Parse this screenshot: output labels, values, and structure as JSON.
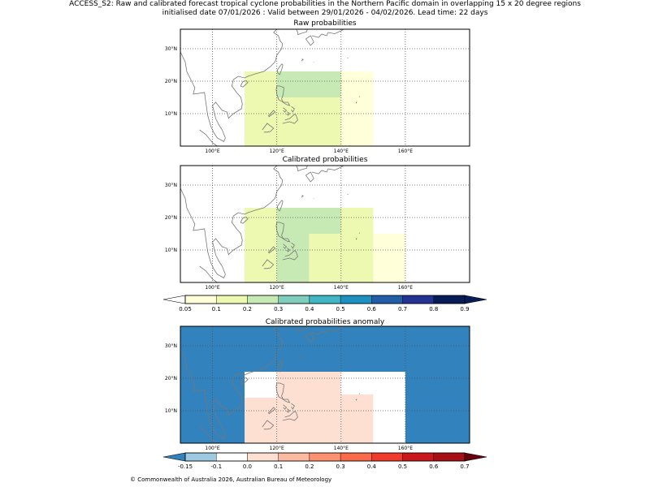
{
  "title_line1": "ACCESS_S2: Raw and calibrated forecast tropical cyclone probabilities in the Northern Pacific domain in overlapping 15 x 20 degree regions",
  "title_line2": "initialised date 07/01/2026 :  Valid between 29/01/2026 - 04/02/2026. Lead time: 22 days",
  "footer": "© Commonwealth of Australia 2026, Australian Bureau of Meteorology",
  "chart_data": [
    {
      "type": "heatmap",
      "title": "Raw probabilities",
      "x_ticks": [
        "100°E",
        "120°E",
        "140°E",
        "160°E"
      ],
      "y_ticks": [
        "10°N",
        "20°N",
        "30°N"
      ],
      "xlim": [
        90,
        180
      ],
      "ylim": [
        0,
        36
      ],
      "cells": [
        {
          "lon": [
            110,
            150
          ],
          "lat": [
            0,
            23
          ],
          "value": 0.07
        },
        {
          "lon": [
            110,
            140
          ],
          "lat": [
            0,
            23
          ],
          "value": 0.15
        },
        {
          "lon": [
            120,
            140
          ],
          "lat": [
            15,
            23
          ],
          "value": 0.25
        }
      ]
    },
    {
      "type": "heatmap",
      "title": "Calibrated probabilities",
      "x_ticks": [
        "100°E",
        "120°E",
        "140°E",
        "160°E"
      ],
      "y_ticks": [
        "10°N",
        "20°N",
        "30°N"
      ],
      "xlim": [
        90,
        180
      ],
      "ylim": [
        0,
        36
      ],
      "cells": [
        {
          "lon": [
            110,
            150
          ],
          "lat": [
            0,
            23
          ],
          "value": 0.07
        },
        {
          "lon": [
            150,
            160
          ],
          "lat": [
            0,
            15
          ],
          "value": 0.07
        },
        {
          "lon": [
            110,
            150
          ],
          "lat": [
            0,
            23
          ],
          "value": 0.15
        },
        {
          "lon": [
            120,
            140
          ],
          "lat": [
            15,
            23
          ],
          "value": 0.25
        },
        {
          "lon": [
            120,
            130
          ],
          "lat": [
            0,
            15
          ],
          "value": 0.25
        }
      ]
    },
    {
      "type": "heatmap",
      "title": "Calibrated probabilities anomaly",
      "x_ticks": [
        "100°E",
        "120°E",
        "140°E",
        "160°E"
      ],
      "y_ticks": [
        "10°N",
        "20°N",
        "30°N"
      ],
      "xlim": [
        90,
        180
      ],
      "ylim": [
        0,
        36
      ],
      "background_value": -0.2,
      "cells": [
        {
          "lon": [
            110,
            160
          ],
          "lat": [
            0,
            22
          ],
          "value": -0.1
        },
        {
          "lon": [
            120,
            140
          ],
          "lat": [
            0,
            22
          ],
          "value": 0.0
        },
        {
          "lon": [
            140,
            150
          ],
          "lat": [
            15,
            22
          ],
          "value": -0.1
        },
        {
          "lon": [
            140,
            150
          ],
          "lat": [
            0,
            15
          ],
          "value": 0.0
        },
        {
          "lon": [
            150,
            160
          ],
          "lat": [
            0,
            15
          ],
          "value": -0.1
        },
        {
          "lon": [
            110,
            120
          ],
          "lat": [
            14,
            22
          ],
          "value": -0.1
        },
        {
          "lon": [
            110,
            120
          ],
          "lat": [
            0,
            14
          ],
          "value": 0.0
        },
        {
          "lon": [
            120,
            130
          ],
          "lat": [
            0,
            14
          ],
          "value": 0.05
        }
      ]
    }
  ],
  "colorbar_prob": {
    "labels": [
      "0.05",
      "0.1",
      "0.2",
      "0.3",
      "0.4",
      "0.5",
      "0.6",
      "0.7",
      "0.8",
      "0.9"
    ],
    "bounds": [
      0.05,
      0.1,
      0.2,
      0.3,
      0.4,
      0.5,
      0.6,
      0.7,
      0.8,
      0.9
    ],
    "colors": [
      "#ffffd9",
      "#edf8b1",
      "#c7e9b4",
      "#7fcdbb",
      "#41b6c4",
      "#1d91c0",
      "#225ea8",
      "#253494",
      "#081d58"
    ],
    "under": "#ffffff",
    "over": "#081d58"
  },
  "colorbar_anom": {
    "labels": [
      "-0.15",
      "-0.1",
      "0.0",
      "0.1",
      "0.2",
      "0.3",
      "0.4",
      "0.5",
      "0.6",
      "0.7"
    ],
    "bounds": [
      -0.15,
      -0.1,
      0.0,
      0.1,
      0.2,
      0.3,
      0.4,
      0.5,
      0.6,
      0.7
    ],
    "colors": [
      "#9ecae1",
      "#ffffff",
      "#fee0d2",
      "#fcbba1",
      "#fc9272",
      "#fb6a4a",
      "#ef3b2c",
      "#cb181d",
      "#a50f15"
    ],
    "under": "#3182bd",
    "over": "#67000d"
  },
  "coast_color": "#777777"
}
